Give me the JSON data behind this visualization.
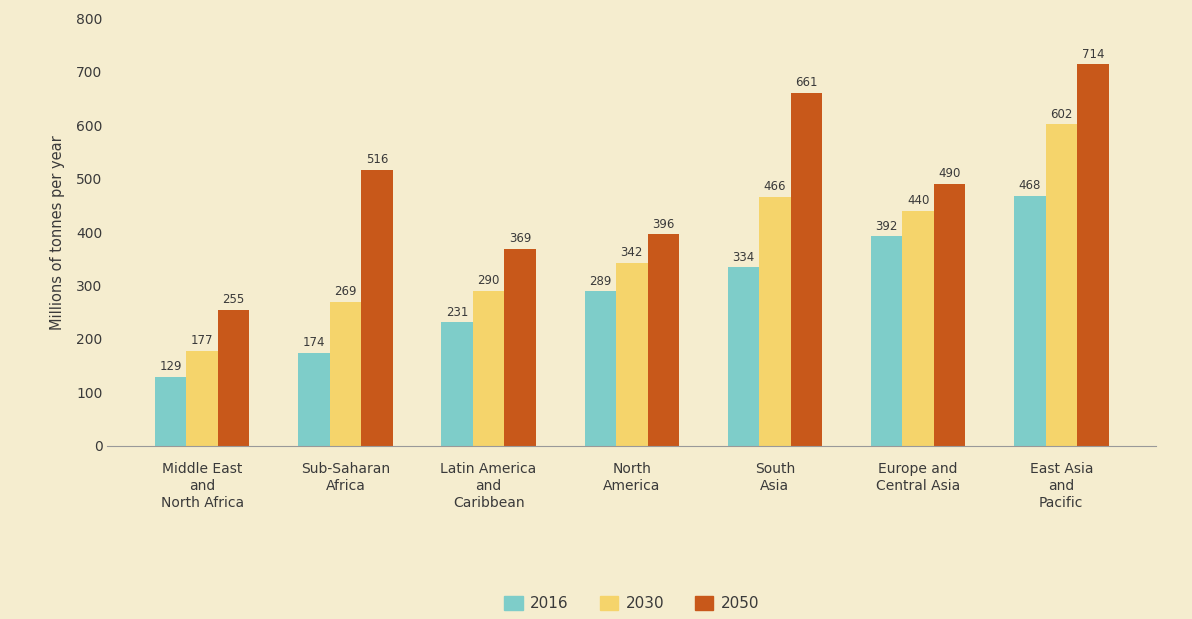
{
  "categories": [
    "Middle East\nand\nNorth Africa",
    "Sub-Saharan\nAfrica",
    "Latin America\nand\nCaribbean",
    "North\nAmerica",
    "South\nAsia",
    "Europe and\nCentral Asia",
    "East Asia\nand\nPacific"
  ],
  "series": {
    "2016": [
      129,
      174,
      231,
      289,
      334,
      392,
      468
    ],
    "2030": [
      177,
      269,
      290,
      342,
      466,
      440,
      602
    ],
    "2050": [
      255,
      516,
      369,
      396,
      661,
      490,
      714
    ]
  },
  "colors": {
    "2016": "#7ecdc9",
    "2030": "#f5d46b",
    "2050": "#c8581a"
  },
  "ylabel": "Millions of tonnes per year",
  "ylim": [
    0,
    800
  ],
  "yticks": [
    0,
    100,
    200,
    300,
    400,
    500,
    600,
    700,
    800
  ],
  "background_color": "#f5edcf",
  "bar_width": 0.22,
  "legend_labels": [
    "2016",
    "2030",
    "2050"
  ],
  "annotation_fontsize": 8.5,
  "axis_label_fontsize": 10.5,
  "tick_label_fontsize": 10,
  "legend_fontsize": 11
}
